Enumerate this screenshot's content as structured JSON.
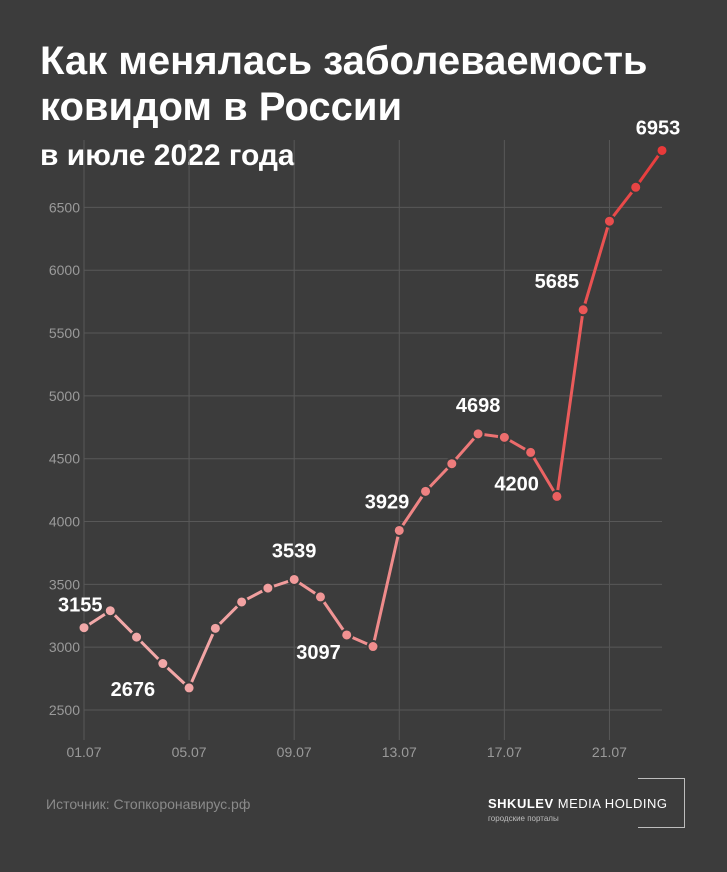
{
  "header": {
    "title": "Как менялась заболеваемость ковидом в России",
    "subtitle": "в июле 2022 года"
  },
  "footer": {
    "source": "Источник: Стопкоронавирус.рф",
    "logo_brand_bold": "SHKULEV",
    "logo_brand_rest": " MEDIA HOLDING",
    "logo_tagline": "городские порталы"
  },
  "colors": {
    "background": "#3c3c3c",
    "grid": "#585858",
    "line_start": "#f2a9a9",
    "line_end": "#e83a3a",
    "label": "#ffffff",
    "tick": "#9a9a9a"
  },
  "chart_data": {
    "type": "line",
    "title": "Как менялась заболеваемость ковидом в России",
    "subtitle": "в июле 2022 года",
    "xlabel": "",
    "ylabel": "",
    "x": [
      "01.07",
      "02.07",
      "03.07",
      "04.07",
      "05.07",
      "06.07",
      "07.07",
      "08.07",
      "09.07",
      "10.07",
      "11.07",
      "12.07",
      "13.07",
      "14.07",
      "15.07",
      "16.07",
      "17.07",
      "18.07",
      "19.07",
      "20.07",
      "21.07",
      "22.07",
      "23.07"
    ],
    "x_ticks": [
      "01.07",
      "05.07",
      "09.07",
      "13.07",
      "17.07",
      "21.07"
    ],
    "y_ticks": [
      2500,
      3000,
      3500,
      4000,
      4500,
      5000,
      5500,
      6000,
      6500
    ],
    "ylim": [
      2500,
      6800
    ],
    "grid": true,
    "series": [
      {
        "values": [
          3155,
          3290,
          3080,
          2870,
          2676,
          3150,
          3360,
          3470,
          3539,
          3400,
          3097,
          3005,
          3929,
          4240,
          4460,
          4698,
          4670,
          4550,
          4200,
          5685,
          6390,
          6660,
          6953
        ]
      }
    ],
    "data_labels": [
      {
        "index": 0,
        "text": "3155"
      },
      {
        "index": 4,
        "text": "2676"
      },
      {
        "index": 8,
        "text": "3539"
      },
      {
        "index": 10,
        "text": "3097"
      },
      {
        "index": 12,
        "text": "3929"
      },
      {
        "index": 15,
        "text": "4698"
      },
      {
        "index": 18,
        "text": "4200"
      },
      {
        "index": 19,
        "text": "5685"
      },
      {
        "index": 22,
        "text": "6953"
      }
    ]
  }
}
